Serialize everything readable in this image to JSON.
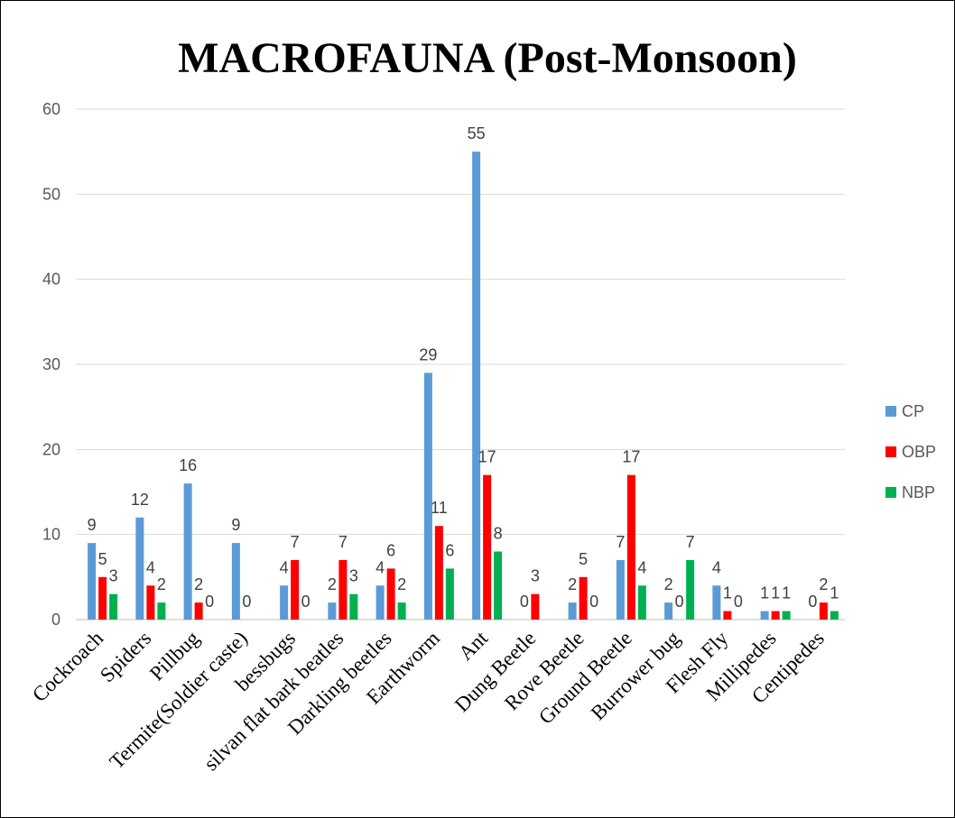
{
  "chart_data": {
    "type": "bar",
    "title": "MACROFAUNA (Post-Monsoon)",
    "xlabel": "",
    "ylabel": "",
    "ylim": [
      0,
      60
    ],
    "yticks": [
      0,
      10,
      20,
      30,
      40,
      50,
      60
    ],
    "grid": true,
    "legend_position": "right",
    "categories": [
      "Cockroach",
      "Spiders",
      "Pillbug",
      "Termite(Soldier caste)",
      "bessbugs",
      "silvan flat bark beatles",
      "Darkling beetles",
      "Earthworm",
      "Ant",
      "Dung Beetle",
      "Rove Beetle",
      "Ground Beetle",
      "Burrower bug",
      "Flesh Fly",
      "Millipedes",
      "Centipedes"
    ],
    "series": [
      {
        "name": "CP",
        "color": "#5b9bd5",
        "values": [
          9,
          12,
          16,
          9,
          4,
          2,
          4,
          29,
          55,
          0,
          2,
          7,
          2,
          4,
          1,
          0
        ],
        "labels": [
          "9",
          "12",
          "16",
          "9",
          "4",
          "2",
          "4",
          "29",
          "55",
          "0",
          "2",
          "7",
          "2",
          "4",
          "1",
          "0"
        ]
      },
      {
        "name": "OBP",
        "color": "#ff0000",
        "values": [
          5,
          4,
          2,
          0,
          7,
          7,
          6,
          11,
          17,
          3,
          5,
          17,
          0,
          1,
          1,
          2
        ],
        "labels": [
          "5",
          "4",
          "2",
          "0",
          "7",
          "7",
          "6",
          "11",
          "17",
          "3",
          "5",
          "17",
          "0",
          "1",
          "1",
          "2"
        ]
      },
      {
        "name": "NBP",
        "color": "#00b050",
        "values": [
          3,
          2,
          0,
          null,
          0,
          3,
          2,
          6,
          8,
          null,
          0,
          4,
          7,
          0,
          1,
          1
        ],
        "labels": [
          "3",
          "2",
          "0",
          "",
          "0",
          "3",
          "2",
          "6",
          "8",
          "",
          "0",
          "4",
          "7",
          "0",
          "1",
          "1"
        ]
      }
    ]
  }
}
